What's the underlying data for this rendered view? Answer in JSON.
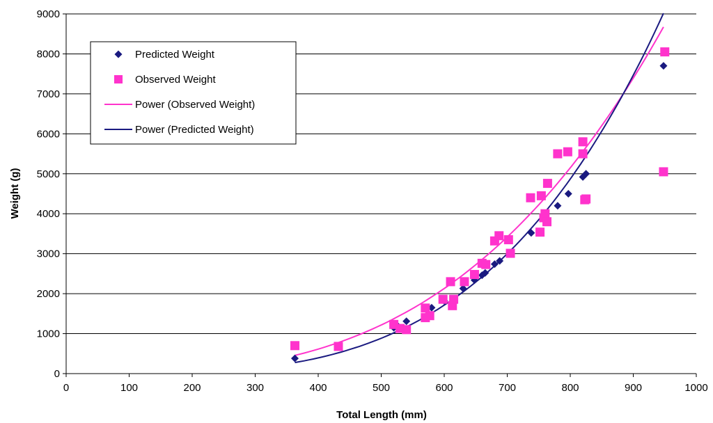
{
  "chart_data": {
    "type": "scatter",
    "title": "",
    "xlabel": "Total Length (mm)",
    "ylabel": "Weight (g)",
    "xlim": [
      0,
      1000
    ],
    "ylim": [
      0,
      9000
    ],
    "x_ticks": [
      0,
      100,
      200,
      300,
      400,
      500,
      600,
      700,
      800,
      900,
      1000
    ],
    "y_ticks": [
      0,
      1000,
      2000,
      3000,
      4000,
      5000,
      6000,
      7000,
      8000,
      9000
    ],
    "grid": "horizontal",
    "legend_position": "top-left",
    "series": [
      {
        "name": "Predicted Weight",
        "kind": "marker",
        "marker": "diamond",
        "color": "#1a1a80",
        "points": [
          [
            363,
            380
          ],
          [
            520,
            1150
          ],
          [
            527,
            1180
          ],
          [
            540,
            1310
          ],
          [
            580,
            1650
          ],
          [
            600,
            1820
          ],
          [
            630,
            2130
          ],
          [
            648,
            2340
          ],
          [
            660,
            2460
          ],
          [
            665,
            2520
          ],
          [
            680,
            2740
          ],
          [
            688,
            2820
          ],
          [
            738,
            3520
          ],
          [
            760,
            3880
          ],
          [
            780,
            4200
          ],
          [
            797,
            4500
          ],
          [
            820,
            4920
          ],
          [
            825,
            5000
          ],
          [
            948,
            7700
          ]
        ]
      },
      {
        "name": "Observed Weight",
        "kind": "marker",
        "marker": "square",
        "color": "#ff33cc",
        "points": [
          [
            363,
            700
          ],
          [
            432,
            680
          ],
          [
            520,
            1230
          ],
          [
            530,
            1130
          ],
          [
            540,
            1100
          ],
          [
            570,
            1640
          ],
          [
            570,
            1400
          ],
          [
            577,
            1450
          ],
          [
            598,
            1860
          ],
          [
            610,
            2300
          ],
          [
            613,
            1700
          ],
          [
            615,
            1860
          ],
          [
            632,
            2300
          ],
          [
            648,
            2480
          ],
          [
            660,
            2760
          ],
          [
            666,
            2730
          ],
          [
            680,
            3320
          ],
          [
            687,
            3450
          ],
          [
            702,
            3350
          ],
          [
            705,
            3010
          ],
          [
            737,
            4400
          ],
          [
            752,
            3540
          ],
          [
            754,
            4450
          ],
          [
            758,
            3900
          ],
          [
            760,
            4000
          ],
          [
            763,
            3800
          ],
          [
            764,
            4760
          ],
          [
            780,
            5500
          ],
          [
            796,
            5550
          ],
          [
            820,
            5800
          ],
          [
            820,
            5500
          ],
          [
            823,
            4350
          ],
          [
            825,
            4370
          ],
          [
            948,
            5050
          ],
          [
            950,
            8050
          ]
        ]
      },
      {
        "name": "Power (Observed Weight)",
        "kind": "trendline",
        "color": "#ff33cc",
        "coef": 6.3e-06,
        "exponent": 3.07,
        "x_range": [
          363,
          948
        ]
      },
      {
        "name": "Power (Predicted Weight)",
        "kind": "trendline",
        "color": "#1a1a80",
        "coef": 1.41e-07,
        "exponent": 3.63,
        "x_range": [
          363,
          948
        ]
      }
    ]
  }
}
